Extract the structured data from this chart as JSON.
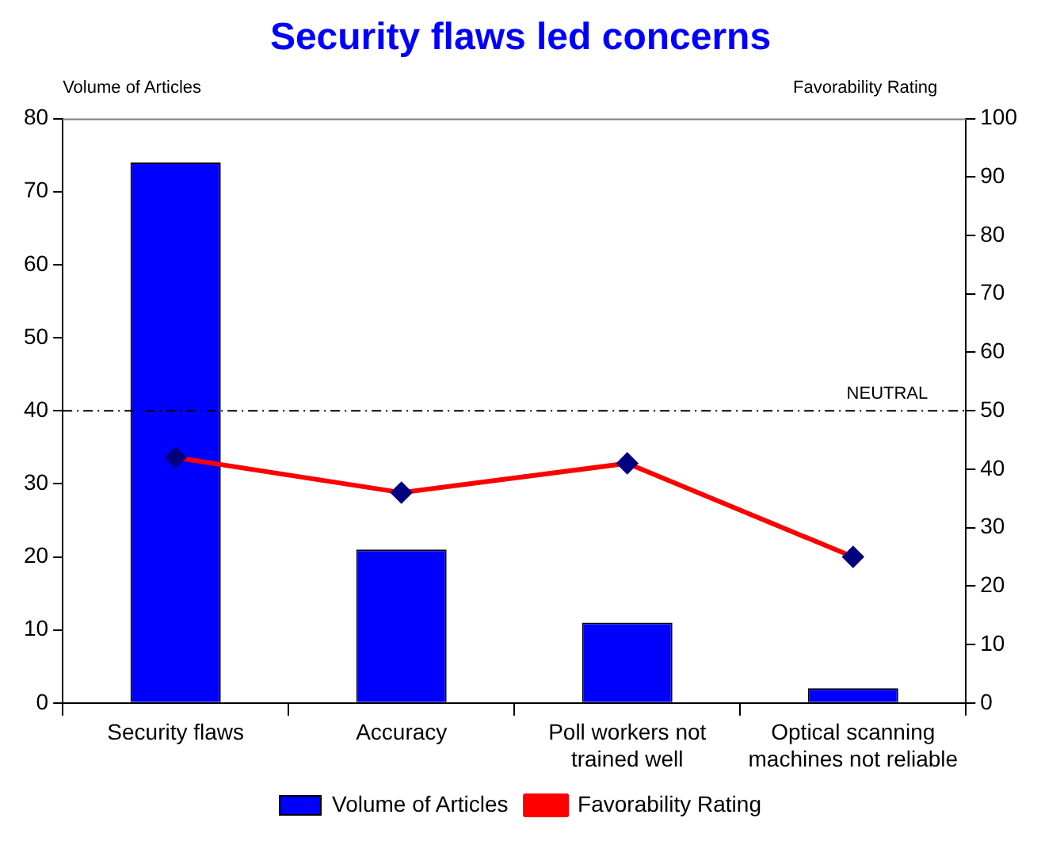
{
  "chart_data": {
    "type": "bar",
    "title": "Security flaws led concerns",
    "ylabel": "Volume of Articles",
    "y2label": "Favorability Rating",
    "categories": [
      "Security flaws",
      "Accuracy",
      "Poll workers not trained well",
      "Optical scanning machines not reliable"
    ],
    "series": [
      {
        "name": "Volume of Articles",
        "color": "#0000ff",
        "values": [
          74,
          21,
          11,
          2
        ]
      },
      {
        "name": "Favorability Rating",
        "type": "line",
        "axis": "y2",
        "color": "#ff0000",
        "marker": "diamond",
        "values": [
          42,
          36,
          41,
          25
        ]
      }
    ],
    "ylim": [
      0,
      80
    ],
    "yticks": [
      0,
      10,
      20,
      30,
      40,
      50,
      60,
      70,
      80
    ],
    "y2lim": [
      0,
      100
    ],
    "y2ticks": [
      0,
      10,
      20,
      30,
      40,
      50,
      60,
      70,
      80,
      90,
      100
    ],
    "ref_lines": [
      {
        "axis": "y2",
        "value": 50,
        "label": "NEUTRAL",
        "color": "#000000",
        "line_style": "dashed"
      }
    ],
    "grid": false,
    "legend": "bottom"
  }
}
